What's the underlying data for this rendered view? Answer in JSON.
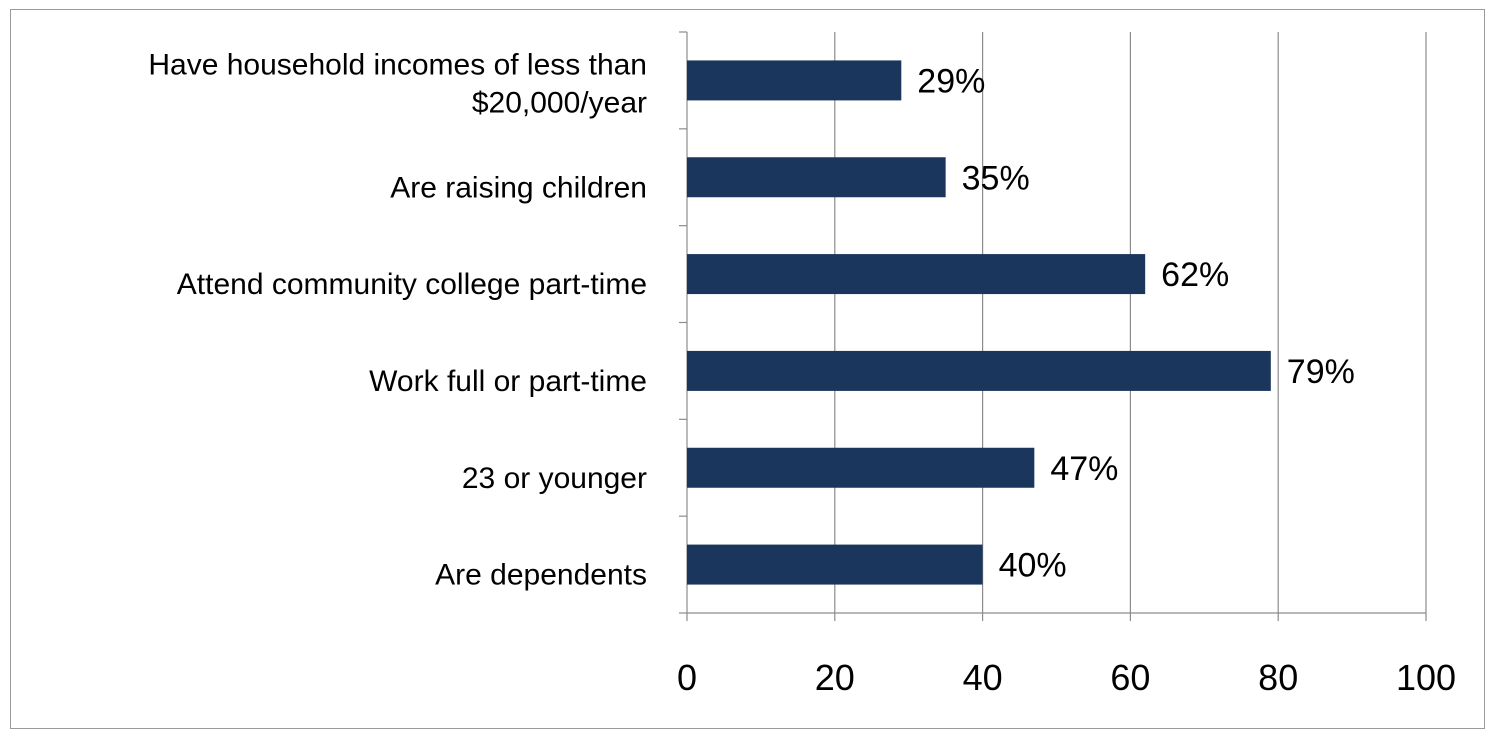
{
  "chart_data": {
    "type": "bar",
    "orientation": "horizontal",
    "categories": [
      "Have household incomes of less than $20,000/year",
      "Are raising children",
      "Attend community college part-time",
      "Work full or part-time",
      "23 or younger",
      "Are dependents"
    ],
    "category_lines": [
      [
        "Have household incomes of less than",
        "$20,000/year"
      ],
      [
        "Are raising children"
      ],
      [
        "Attend community college part-time"
      ],
      [
        "Work full or part-time"
      ],
      [
        "23 or younger"
      ],
      [
        "Are dependents"
      ]
    ],
    "values": [
      29,
      35,
      62,
      79,
      47,
      40
    ],
    "data_labels": [
      "29%",
      "35%",
      "62%",
      "79%",
      "47%",
      "40%"
    ],
    "x_ticks": [
      "0",
      "20",
      "40",
      "60",
      "80",
      "100"
    ],
    "xlim": [
      0,
      100
    ],
    "grid": true,
    "legend": false,
    "bar_color": "#1b365d",
    "grid_color": "#8c8c8c",
    "axis_color": "#8c8c8c"
  }
}
